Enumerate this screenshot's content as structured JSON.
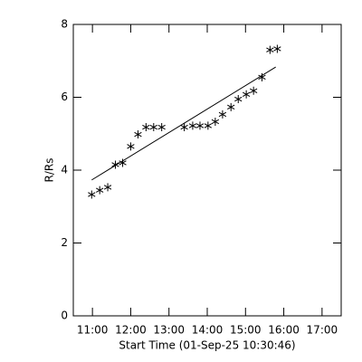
{
  "chart_data": {
    "type": "scatter",
    "color": "#000000",
    "x_label": "Start Time (01-Sep-25 10:30:46)",
    "y_label": "R/Rs",
    "xlim": [
      10.5,
      17.5
    ],
    "ylim": [
      0,
      8
    ],
    "xticks": [
      {
        "value": 11,
        "label": "11:00"
      },
      {
        "value": 12,
        "label": "12:00"
      },
      {
        "value": 13,
        "label": "13:00"
      },
      {
        "value": 14,
        "label": "14:00"
      },
      {
        "value": 15,
        "label": "15:00"
      },
      {
        "value": 16,
        "label": "16:00"
      },
      {
        "value": 17,
        "label": "17:00"
      }
    ],
    "yticks": [
      0,
      2,
      4,
      6,
      8
    ],
    "x": [
      10.98,
      11.19,
      11.4,
      11.6,
      11.79,
      12.0,
      12.19,
      12.4,
      12.6,
      12.81,
      13.4,
      13.62,
      13.81,
      14.02,
      14.21,
      14.4,
      14.62,
      14.81,
      15.02,
      15.21,
      15.43,
      15.64,
      15.83
    ],
    "y": [
      3.33,
      3.45,
      3.53,
      4.15,
      4.2,
      4.65,
      4.98,
      5.18,
      5.18,
      5.18,
      5.18,
      5.22,
      5.22,
      5.22,
      5.33,
      5.53,
      5.73,
      5.95,
      6.08,
      6.18,
      6.55,
      7.3,
      7.33
    ],
    "fit_line": {
      "x": [
        10.98,
        15.79
      ],
      "y": [
        3.73,
        6.83
      ]
    }
  }
}
